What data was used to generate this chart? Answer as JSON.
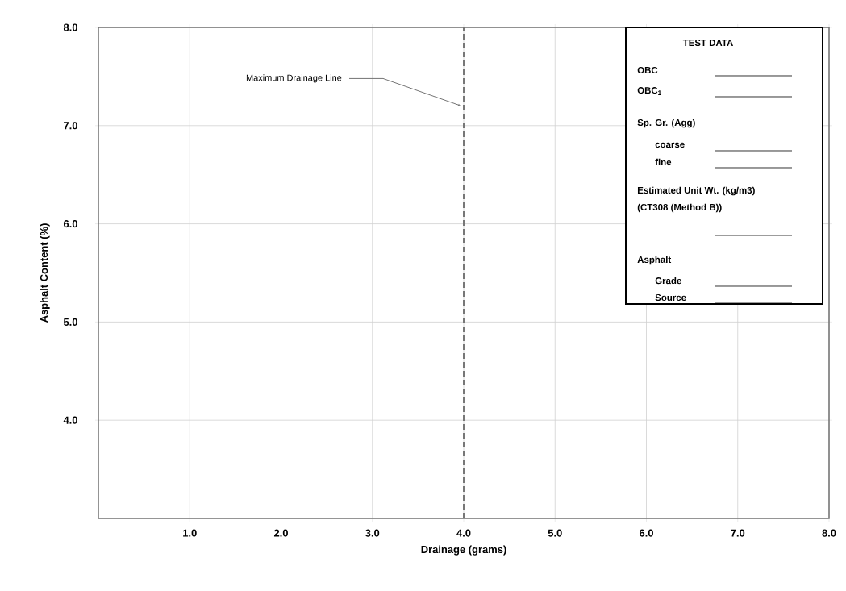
{
  "chart_data": {
    "type": "line",
    "xlabel": "Drainage (grams)",
    "ylabel": "Asphalt Content (%)",
    "xlim": [
      0,
      8
    ],
    "ylim": [
      3,
      8
    ],
    "xticks": [
      {
        "value": 1,
        "label": "1.0"
      },
      {
        "value": 2,
        "label": "2.0"
      },
      {
        "value": 3,
        "label": "3.0"
      },
      {
        "value": 4,
        "label": "4.0"
      },
      {
        "value": 5,
        "label": "5.0"
      },
      {
        "value": 6,
        "label": "6.0"
      },
      {
        "value": 7,
        "label": "7.0"
      },
      {
        "value": 8,
        "label": "8.0"
      }
    ],
    "yticks": [
      {
        "value": 4,
        "label": "4.0"
      },
      {
        "value": 5,
        "label": "5.0"
      },
      {
        "value": 6,
        "label": "6.0"
      },
      {
        "value": 7,
        "label": "7.0"
      },
      {
        "value": 8,
        "label": "8.0"
      }
    ],
    "grid": true,
    "ref_lines": [
      {
        "axis": "x",
        "value": 4,
        "label": "Maximum Drainage Line",
        "color": "#777777",
        "line_style": "dashed"
      }
    ],
    "annotations": [
      "TEST DATA",
      "OBC",
      "OBC$_{1}$",
      "Sp. Gr. (Agg)",
      "coarse",
      "fine",
      "Estimated Unit Wt. (kg/m3)",
      "(CT308 (Method B))",
      "Asphalt",
      "Grade",
      "Source"
    ]
  }
}
